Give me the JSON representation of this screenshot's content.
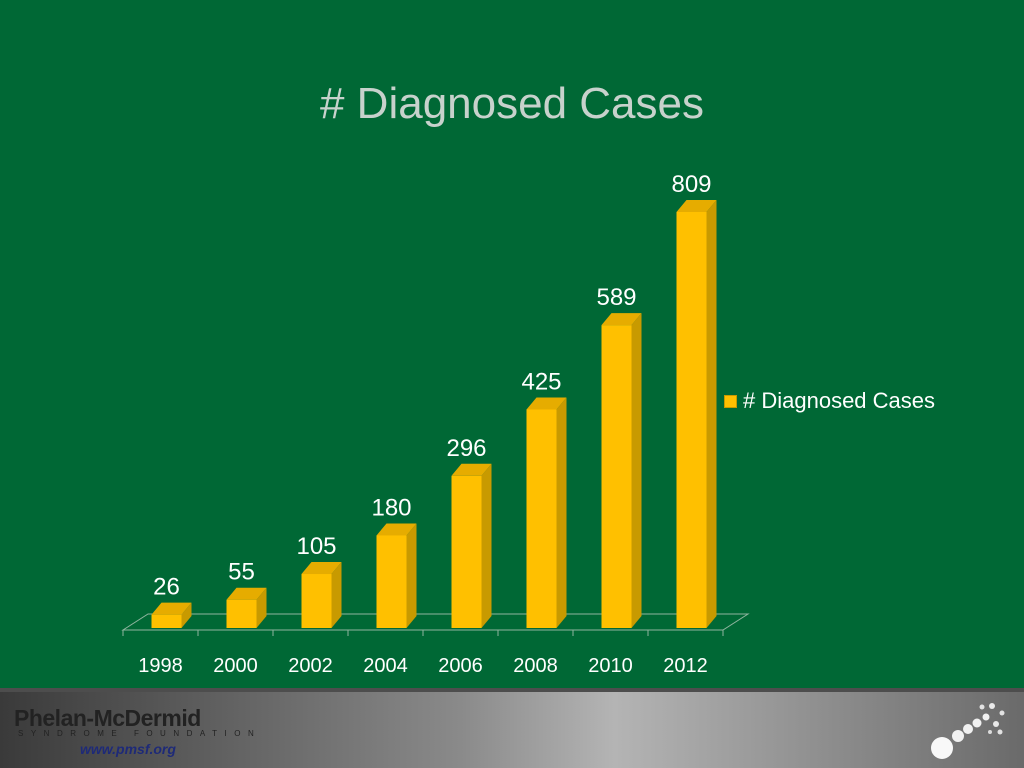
{
  "slide": {
    "title": "# Diagnosed Cases"
  },
  "colors": {
    "background": "#006835",
    "bar_front": "#ffc000",
    "bar_side": "#c89a00",
    "bar_top": "#e6ac00",
    "label": "#ffffff",
    "title": "#c7d2cc"
  },
  "chart_data": {
    "type": "bar",
    "style": "3d-column",
    "title": "# Diagnosed Cases",
    "categories": [
      "1998",
      "2000",
      "2002",
      "2004",
      "2006",
      "2008",
      "2010",
      "2012"
    ],
    "series": [
      {
        "name": "# Diagnosed Cases",
        "values": [
          26,
          55,
          105,
          180,
          296,
          425,
          589,
          809
        ],
        "data_labels": [
          "26",
          "55",
          "105",
          "180",
          "296",
          "425",
          "589",
          "809"
        ]
      }
    ],
    "ylim": [
      0,
      809
    ],
    "y_axis_visible": false,
    "grid": false,
    "legend_position": "right"
  },
  "footer": {
    "org_name": "Phelan-McDermid",
    "org_subtitle": "SYNDROME FOUNDATION",
    "url": "www.pmsf.org",
    "logo_mark_icon": "chromosome-dots-icon"
  }
}
